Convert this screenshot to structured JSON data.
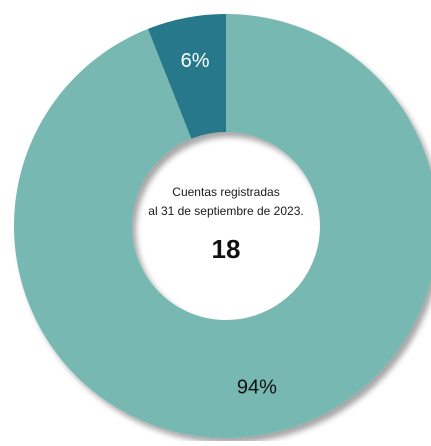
{
  "chart_data": {
    "type": "pie",
    "donut": true,
    "categories": [
      "",
      ""
    ],
    "values": [
      94,
      6
    ],
    "labels": [
      "94%",
      "6%"
    ],
    "colors": [
      "#78b8b2",
      "#25788a"
    ],
    "label_colors": [
      "#111111",
      "#ffffff"
    ],
    "center_text": {
      "line1": "Cuentas registradas",
      "line2": "al 31 de septiembre de 2023.",
      "value": "18"
    },
    "legend": "none",
    "title": ""
  }
}
